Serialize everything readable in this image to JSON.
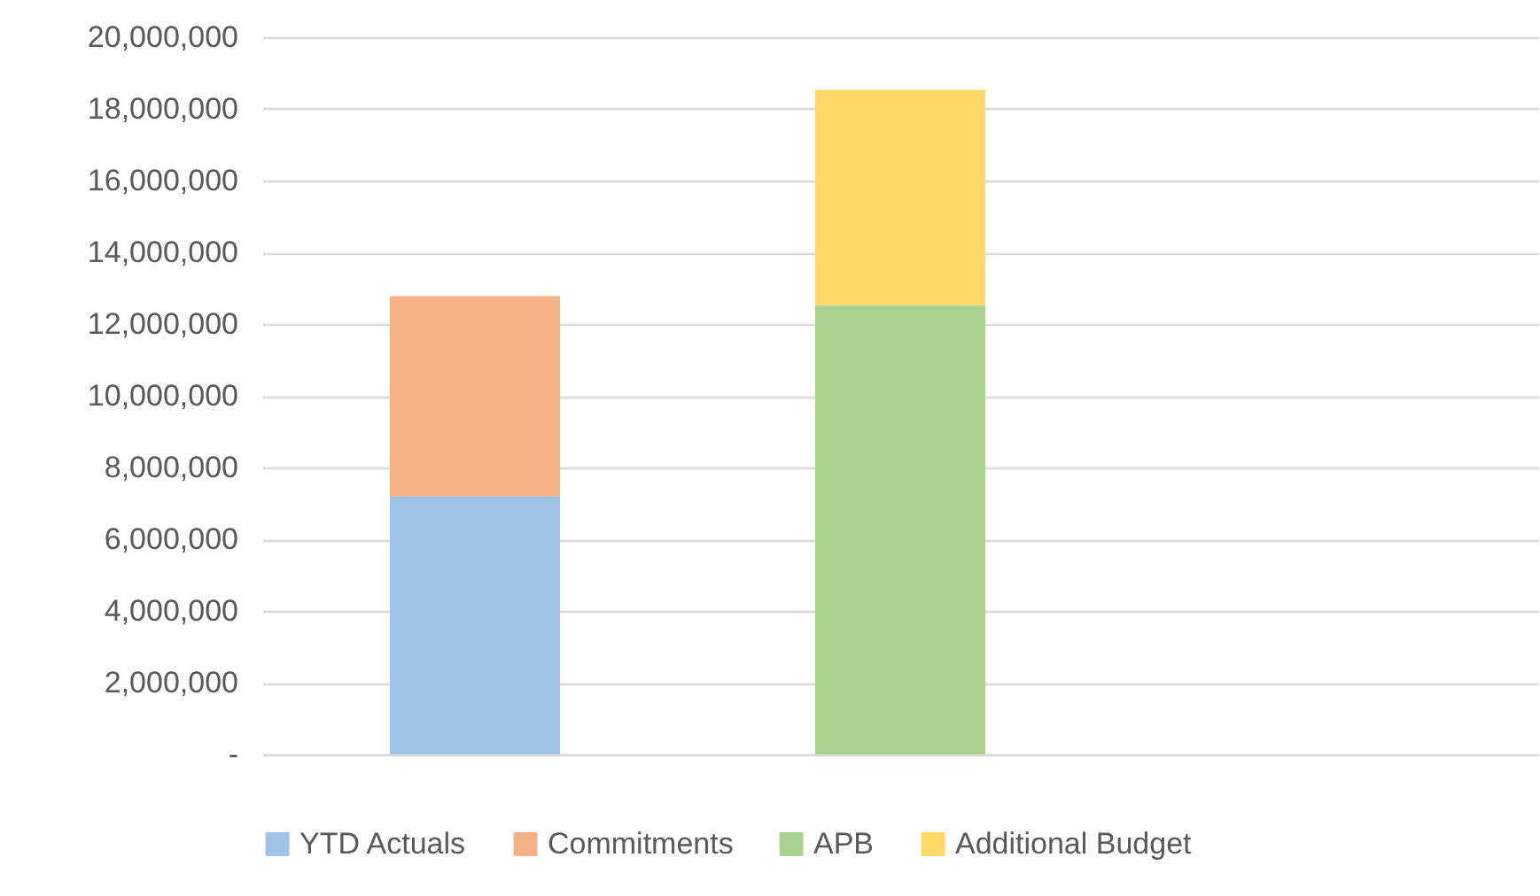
{
  "chart_data": {
    "type": "bar",
    "stacked": true,
    "categories": [
      null,
      null,
      null
    ],
    "series": [
      {
        "name": "YTD Actuals",
        "color": "#9dc3e6",
        "values": [
          7190000,
          null,
          null
        ]
      },
      {
        "name": "Commitments",
        "color": "#f4b183",
        "values": [
          5590000,
          null,
          null
        ]
      },
      {
        "name": "APB",
        "color": "#a9d18e",
        "values": [
          null,
          12530000,
          null
        ]
      },
      {
        "name": "Additional Budget",
        "color": "#ffd966",
        "values": [
          null,
          6000000,
          null
        ]
      }
    ],
    "ylim": [
      0,
      20000000
    ],
    "yticks": [
      {
        "value": 0,
        "label": "-"
      },
      {
        "value": 2000000,
        "label": "2,000,000"
      },
      {
        "value": 4000000,
        "label": "4,000,000"
      },
      {
        "value": 6000000,
        "label": "6,000,000"
      },
      {
        "value": 8000000,
        "label": "8,000,000"
      },
      {
        "value": 10000000,
        "label": "10,000,000"
      },
      {
        "value": 12000000,
        "label": "12,000,000"
      },
      {
        "value": 14000000,
        "label": "14,000,000"
      },
      {
        "value": 16000000,
        "label": "16,000,000"
      },
      {
        "value": 18000000,
        "label": "18,000,000"
      },
      {
        "value": 20000000,
        "label": "20,000,000"
      }
    ],
    "grid": "y",
    "legend": "bottom"
  }
}
